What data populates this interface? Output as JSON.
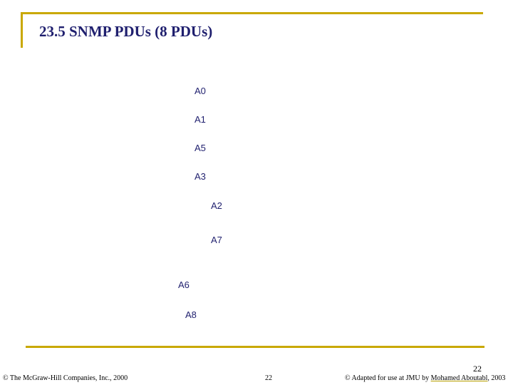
{
  "header": {
    "title": "23.5 SNMP PDUs (8 PDUs)"
  },
  "labels": [
    "A0",
    "A1",
    "A5",
    "A3",
    "A2",
    "A7",
    "A6",
    "A8"
  ],
  "footer": {
    "page_number": "22",
    "left": "© The McGraw-Hill Companies, Inc., 2000",
    "center": "22",
    "right_prefix": "© Adapted for use at JMU by ",
    "right_link": "Mohamed Aboutabl",
    "right_suffix": ", 2003"
  }
}
